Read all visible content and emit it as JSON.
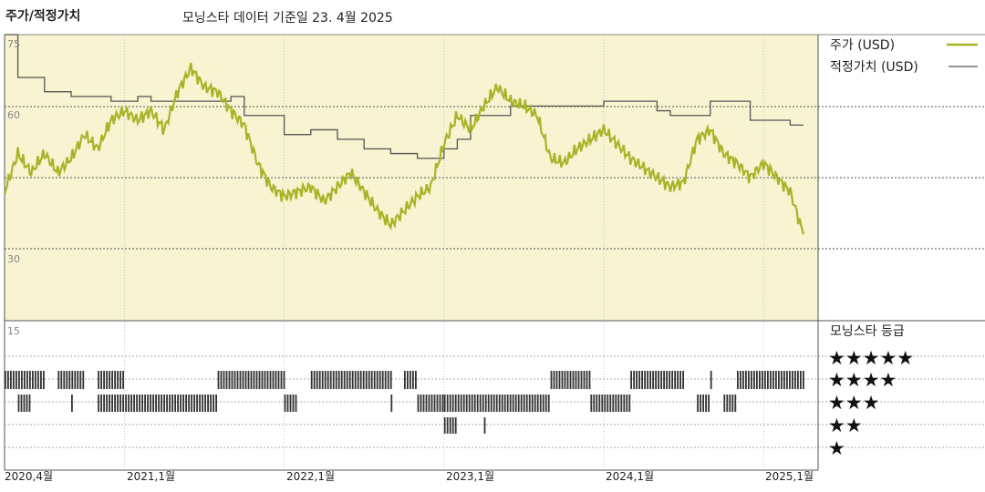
{
  "header": {
    "chart_label": "주가/적정가치",
    "source_note": "모닝스타 데이터 기준일 23. 4월 2025"
  },
  "legend": {
    "price_label": "주가 (USD)",
    "fair_value_label": "적정가치 (USD)"
  },
  "rating_panel": {
    "title": "모닝스타 등급",
    "levels": [
      "★★★★★",
      "★★★★",
      "★★★",
      "★★",
      "★"
    ]
  },
  "colors": {
    "price": "#a8b428",
    "fair_value": "#555555",
    "chart_bg": "#f8f3d0",
    "rating_bar": "#333333"
  },
  "chart_data": {
    "type": "line",
    "title": "",
    "y_tick_labels": [
      "75",
      "60",
      "30",
      "15"
    ],
    "x_tick_labels": [
      "2020,4월",
      "2021,1월",
      "2022,1월",
      "2023,1월",
      "2024,1월",
      "2025,1월"
    ],
    "ylim": [
      30,
      75
    ],
    "dashed_lines": [
      45,
      30
    ],
    "series": [
      {
        "name": "주가 (USD)",
        "color": "#a8b428",
        "points": [
          [
            "2020-04",
            42
          ],
          [
            "2020-05",
            50
          ],
          [
            "2020-06",
            46
          ],
          [
            "2020-07",
            50
          ],
          [
            "2020-08",
            46
          ],
          [
            "2020-09",
            49
          ],
          [
            "2020-10",
            54
          ],
          [
            "2020-11",
            51
          ],
          [
            "2020-12",
            57
          ],
          [
            "2021-01",
            59
          ],
          [
            "2021-02",
            57
          ],
          [
            "2021-03",
            59
          ],
          [
            "2021-04",
            55
          ],
          [
            "2021-05",
            63
          ],
          [
            "2021-06",
            68
          ],
          [
            "2021-07",
            64
          ],
          [
            "2021-08",
            63
          ],
          [
            "2021-09",
            59
          ],
          [
            "2021-10",
            56
          ],
          [
            "2021-11",
            48
          ],
          [
            "2021-12",
            43
          ],
          [
            "2022-01",
            41
          ],
          [
            "2022-02",
            42
          ],
          [
            "2022-03",
            43
          ],
          [
            "2022-04",
            40
          ],
          [
            "2022-05",
            43
          ],
          [
            "2022-06",
            46
          ],
          [
            "2022-07",
            42
          ],
          [
            "2022-08",
            38
          ],
          [
            "2022-09",
            35
          ],
          [
            "2022-10",
            38
          ],
          [
            "2022-11",
            41
          ],
          [
            "2022-12",
            43
          ],
          [
            "2023-01",
            52
          ],
          [
            "2023-02",
            58
          ],
          [
            "2023-03",
            55
          ],
          [
            "2023-04",
            60
          ],
          [
            "2023-05",
            64
          ],
          [
            "2023-06",
            61
          ],
          [
            "2023-07",
            60
          ],
          [
            "2023-08",
            58
          ],
          [
            "2023-09",
            49
          ],
          [
            "2023-10",
            48
          ],
          [
            "2023-11",
            51
          ],
          [
            "2023-12",
            53
          ],
          [
            "2024-01",
            55
          ],
          [
            "2024-02",
            52
          ],
          [
            "2024-03",
            49
          ],
          [
            "2024-04",
            47
          ],
          [
            "2024-05",
            45
          ],
          [
            "2024-06",
            43
          ],
          [
            "2024-07",
            44
          ],
          [
            "2024-08",
            53
          ],
          [
            "2024-09",
            55
          ],
          [
            "2024-10",
            50
          ],
          [
            "2024-11",
            48
          ],
          [
            "2024-12",
            45
          ],
          [
            "2025-01",
            48
          ],
          [
            "2025-02",
            45
          ],
          [
            "2025-03",
            42
          ],
          [
            "2025-04",
            33
          ]
        ]
      },
      {
        "name": "적정가치 (USD)",
        "color": "#555555",
        "points": [
          [
            "2020-04",
            75
          ],
          [
            "2020-05",
            66
          ],
          [
            "2020-07",
            63
          ],
          [
            "2020-09",
            62
          ],
          [
            "2020-12",
            61
          ],
          [
            "2021-02",
            62
          ],
          [
            "2021-03",
            61
          ],
          [
            "2021-05",
            61
          ],
          [
            "2021-09",
            62
          ],
          [
            "2021-10",
            58
          ],
          [
            "2022-01",
            54
          ],
          [
            "2022-03",
            55
          ],
          [
            "2022-05",
            53
          ],
          [
            "2022-07",
            51
          ],
          [
            "2022-09",
            50
          ],
          [
            "2022-11",
            49
          ],
          [
            "2023-01",
            51
          ],
          [
            "2023-02",
            53
          ],
          [
            "2023-03",
            58
          ],
          [
            "2023-06",
            60
          ],
          [
            "2023-08",
            60
          ],
          [
            "2024-01",
            61
          ],
          [
            "2024-05",
            59
          ],
          [
            "2024-06",
            58
          ],
          [
            "2024-09",
            61
          ],
          [
            "2024-12",
            57
          ],
          [
            "2025-03",
            56
          ]
        ]
      }
    ],
    "rating_history": {
      "bands": [
        {
          "stars": 4,
          "ranges": [
            [
              "2020-04",
              "2020-07"
            ],
            [
              "2020-08",
              "2020-10"
            ],
            [
              "2020-11",
              "2021-01"
            ],
            [
              "2021-08",
              "2022-01"
            ],
            [
              "2022-03",
              "2022-09"
            ],
            [
              "2022-10",
              "2022-11"
            ],
            [
              "2023-09",
              "2023-12"
            ],
            [
              "2024-03",
              "2024-07"
            ],
            [
              "2024-09",
              "2024-09"
            ],
            [
              "2024-11",
              "2025-04"
            ]
          ]
        },
        {
          "stars": 3,
          "ranges": [
            [
              "2020-05",
              "2020-06"
            ],
            [
              "2020-09",
              "2020-09"
            ],
            [
              "2020-11",
              "2021-08"
            ],
            [
              "2022-01",
              "2022-02"
            ],
            [
              "2022-09",
              "2022-09"
            ],
            [
              "2022-11",
              "2023-01"
            ],
            [
              "2023-01",
              "2023-09"
            ],
            [
              "2023-12",
              "2024-03"
            ],
            [
              "2024-08",
              "2024-09"
            ],
            [
              "2024-10",
              "2024-11"
            ]
          ]
        },
        {
          "stars": 2,
          "ranges": [
            [
              "2023-01",
              "2023-02"
            ],
            [
              "2023-04",
              "2023-04"
            ]
          ]
        }
      ]
    }
  }
}
